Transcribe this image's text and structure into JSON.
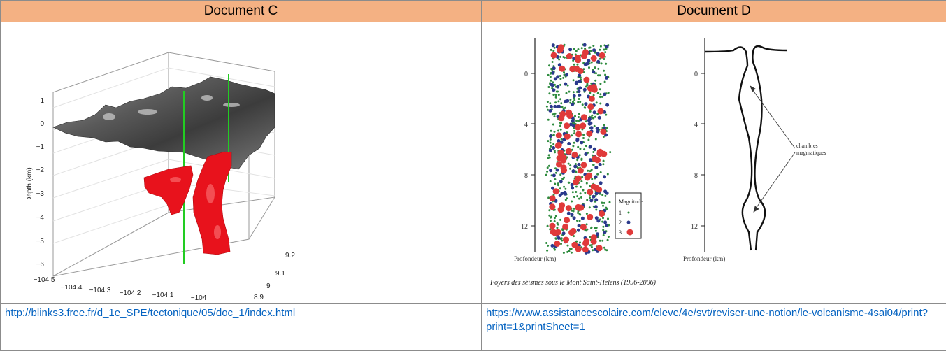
{
  "documents": [
    {
      "title": "Document C",
      "link": "http://blinks3.free.fr/d_1e_SPE/tectonique/05/doc_1/index.html",
      "figure": {
        "z_axis_label": "Depth (km)",
        "z_ticks": [
          "1",
          "0",
          "−1",
          "−2",
          "−3",
          "−4",
          "−5",
          "−6"
        ],
        "x_ticks": [
          "−104.5",
          "−104.4",
          "−104.3",
          "−104.2",
          "−104.1",
          "−104"
        ],
        "y_ticks": [
          "9.2",
          "9.1",
          "9",
          "8.9"
        ],
        "colors": {
          "surface": "#6e6e6e",
          "chamber": "#e8121c",
          "pipe": "#22cc22"
        }
      }
    },
    {
      "title": "Document D",
      "link": "https://www.assistancescolaire.com/eleve/4e/svt/reviser-une-notion/le-volcanisme-4sai04/print?print=1&printSheet=1",
      "figure": {
        "left_ticks": [
          "0",
          "4",
          "8",
          "12"
        ],
        "left_axis_label": "Profondeur (km)",
        "right_ticks": [
          "0",
          "4",
          "8",
          "12"
        ],
        "right_axis_label": "Profondeur (km)",
        "legend_title": "Magnitude",
        "legend_items": [
          "1",
          "2",
          "3"
        ],
        "chamber_label": [
          "chambres",
          "magmatiques"
        ],
        "caption": "Foyers des séismes sous le Mont Saint-Helens (1996-2006)",
        "colors": {
          "mag1": "#2e8b3e",
          "mag2": "#2b3a8c",
          "mag3": "#e03a3a"
        }
      }
    }
  ]
}
